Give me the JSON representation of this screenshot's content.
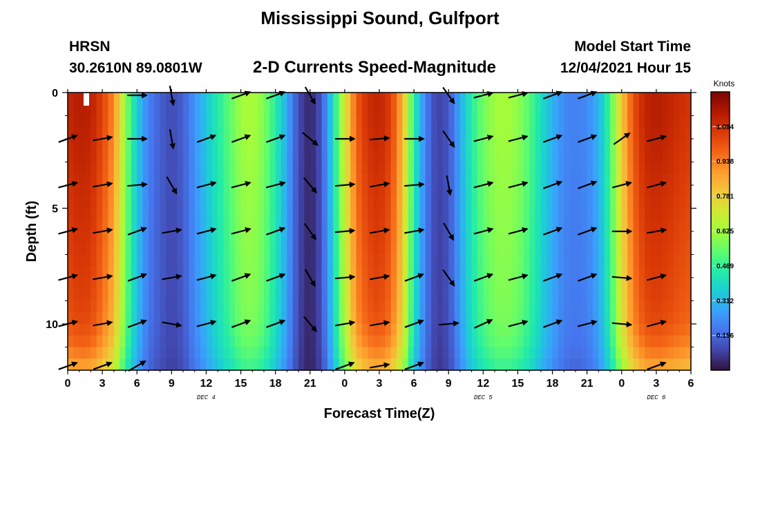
{
  "page": {
    "title": "Mississippi Sound, Gulfport",
    "station_name": "HRSN",
    "station_coords": "30.2610N  89.0801W",
    "subtitle": "2-D Currents Speed-Magnitude",
    "model_start_label": "Model Start Time",
    "model_start_value": "12/04/2021 Hour 15",
    "bottom_title": "Mississippi Sound, Gulfport"
  },
  "chart_data": {
    "type": "heatmap",
    "title": "2-D Currents Speed-Magnitude",
    "xlabel": "Forecast Time(Z)",
    "ylabel": "Depth (ft)",
    "x_tick_labels": [
      "0",
      "3",
      "6",
      "9",
      "12",
      "15",
      "18",
      "21",
      "0",
      "3",
      "6",
      "9",
      "12",
      "15",
      "18",
      "21",
      "0",
      "3",
      "6"
    ],
    "x_range_hours": [
      0,
      54
    ],
    "date_labels": [
      {
        "label": "DEC 4",
        "hour": 12
      },
      {
        "label": "DEC 5",
        "hour": 36
      },
      {
        "label": "DEC 6",
        "hour": 51
      }
    ],
    "y_ticks": [
      0,
      5,
      10
    ],
    "ylim": [
      0,
      12
    ],
    "y_inverted": true,
    "colorbar": {
      "unit": "Knots",
      "min": 0,
      "max": 1.25,
      "tick_values": [
        0.156,
        0.312,
        0.469,
        0.625,
        0.781,
        0.938,
        1.094
      ],
      "tick_labels": [
        "0.156",
        "0.312",
        "0.469",
        "0.625",
        "0.781",
        "0.938",
        "1.094"
      ]
    },
    "colormap": [
      "#30123b",
      "#4145ab",
      "#4675ed",
      "#39a2fc",
      "#1bcfd4",
      "#24eca6",
      "#61fc6c",
      "#a4fc3b",
      "#d1e834",
      "#f3c63a",
      "#fe9b2d",
      "#f36315",
      "#d93806",
      "#b11901",
      "#7a0403"
    ],
    "speed_by_hour": [
      [
        0,
        1.12
      ],
      [
        1,
        1.15
      ],
      [
        2,
        1.14
      ],
      [
        3,
        1.05
      ],
      [
        4,
        0.92
      ],
      [
        5,
        0.6
      ],
      [
        6,
        0.35
      ],
      [
        7,
        0.2
      ],
      [
        8,
        0.14
      ],
      [
        9,
        0.1
      ],
      [
        10,
        0.14
      ],
      [
        11,
        0.24
      ],
      [
        12,
        0.34
      ],
      [
        13,
        0.44
      ],
      [
        14,
        0.53
      ],
      [
        15,
        0.62
      ],
      [
        16,
        0.64
      ],
      [
        17,
        0.58
      ],
      [
        18,
        0.45
      ],
      [
        19,
        0.28
      ],
      [
        20,
        0.1
      ],
      [
        21,
        0.03
      ],
      [
        22,
        0.12
      ],
      [
        23,
        0.4
      ],
      [
        24,
        0.72
      ],
      [
        25,
        1.0
      ],
      [
        26,
        1.1
      ],
      [
        27,
        1.13
      ],
      [
        28,
        1.06
      ],
      [
        29,
        0.85
      ],
      [
        30,
        0.45
      ],
      [
        31,
        0.2
      ],
      [
        32,
        0.08
      ],
      [
        33,
        0.12
      ],
      [
        34,
        0.28
      ],
      [
        35,
        0.45
      ],
      [
        36,
        0.56
      ],
      [
        37,
        0.62
      ],
      [
        38,
        0.63
      ],
      [
        39,
        0.6
      ],
      [
        40,
        0.52
      ],
      [
        41,
        0.4
      ],
      [
        42,
        0.3
      ],
      [
        43,
        0.22
      ],
      [
        44,
        0.2
      ],
      [
        45,
        0.22
      ],
      [
        46,
        0.3
      ],
      [
        47,
        0.5
      ],
      [
        48,
        0.8
      ],
      [
        49,
        1.02
      ],
      [
        50,
        1.13
      ],
      [
        51,
        1.15
      ],
      [
        52,
        1.13
      ],
      [
        53,
        1.1
      ],
      [
        54,
        1.08
      ]
    ],
    "depth_factor": [
      [
        0,
        1.0
      ],
      [
        1,
        1.0
      ],
      [
        2,
        0.99
      ],
      [
        3,
        0.98
      ],
      [
        4,
        0.97
      ],
      [
        5,
        0.96
      ],
      [
        6,
        0.95
      ],
      [
        7,
        0.94
      ],
      [
        8,
        0.93
      ],
      [
        9,
        0.92
      ],
      [
        10,
        0.9
      ],
      [
        11,
        0.85
      ],
      [
        12,
        0.75
      ]
    ],
    "vector_depths": [
      0,
      2,
      4,
      6,
      8,
      10,
      12
    ],
    "vector_hours": [
      0,
      3,
      6,
      9,
      12,
      15,
      18,
      21,
      24,
      27,
      30,
      33,
      36,
      39,
      42,
      45,
      48,
      51,
      54
    ],
    "vector_directions_deg": [
      [
        null,
        null,
        0,
        -80,
        null,
        20,
        20,
        -60,
        null,
        null,
        null,
        -55,
        15,
        15,
        20,
        20,
        null,
        null,
        null
      ],
      [
        20,
        10,
        0,
        -80,
        20,
        20,
        20,
        -40,
        0,
        5,
        0,
        -55,
        15,
        15,
        20,
        20,
        35,
        15,
        null
      ],
      [
        15,
        10,
        5,
        -60,
        15,
        15,
        15,
        -50,
        5,
        10,
        5,
        -80,
        15,
        15,
        20,
        20,
        15,
        15,
        null
      ],
      [
        15,
        10,
        20,
        10,
        15,
        15,
        20,
        -55,
        5,
        10,
        10,
        -60,
        15,
        15,
        20,
        20,
        0,
        10,
        null
      ],
      [
        15,
        10,
        20,
        10,
        15,
        20,
        20,
        -60,
        5,
        10,
        20,
        -55,
        20,
        15,
        20,
        20,
        -5,
        15,
        null
      ],
      [
        15,
        10,
        20,
        -10,
        15,
        20,
        20,
        -50,
        10,
        10,
        20,
        5,
        25,
        15,
        20,
        15,
        -5,
        15,
        null
      ],
      [
        20,
        20,
        30,
        null,
        null,
        null,
        null,
        null,
        20,
        10,
        20,
        null,
        null,
        null,
        null,
        null,
        null,
        20,
        null
      ]
    ]
  }
}
